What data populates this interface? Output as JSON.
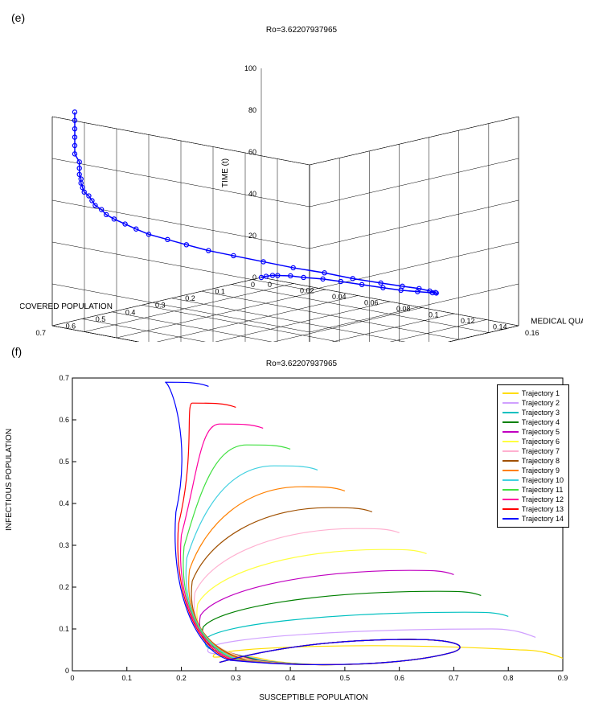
{
  "panel_e": {
    "label": "(e)",
    "title": "Ro=3.62207937965",
    "type": "3d-line-markers",
    "zlabel": "TIME (t)",
    "xlabel": "RECOVERED POPULATION",
    "ylabel": "MEDICAL QUARANTINE POPULATION",
    "z_ticks": [
      0,
      20,
      40,
      60,
      80,
      100
    ],
    "x_ticks": [
      0,
      0.1,
      0.2,
      0.3,
      0.4,
      0.5,
      0.6,
      0.7
    ],
    "y_ticks": [
      0,
      0.02,
      0.04,
      0.06,
      0.08,
      0.1,
      0.12,
      0.14,
      0.16
    ],
    "line_color": "#0000ff",
    "marker_color": "#0000ff",
    "marker_style": "circle",
    "line_width": 1.5,
    "grid_color": "#000000",
    "grid_width": 0.5,
    "background": "#ffffff",
    "data_rxqt": [
      [
        0.0,
        0.0,
        0
      ],
      [
        0.0,
        0.003,
        1
      ],
      [
        0.0,
        0.007,
        2
      ],
      [
        0.01,
        0.012,
        3
      ],
      [
        0.01,
        0.02,
        4
      ],
      [
        0.02,
        0.03,
        5
      ],
      [
        0.02,
        0.042,
        6
      ],
      [
        0.03,
        0.055,
        7
      ],
      [
        0.04,
        0.07,
        8
      ],
      [
        0.05,
        0.085,
        9
      ],
      [
        0.06,
        0.098,
        10
      ],
      [
        0.08,
        0.112,
        12
      ],
      [
        0.1,
        0.125,
        14
      ],
      [
        0.13,
        0.133,
        16
      ],
      [
        0.16,
        0.138,
        18
      ],
      [
        0.19,
        0.14,
        20
      ],
      [
        0.22,
        0.139,
        22
      ],
      [
        0.26,
        0.136,
        24
      ],
      [
        0.3,
        0.13,
        26
      ],
      [
        0.34,
        0.12,
        28
      ],
      [
        0.37,
        0.108,
        30
      ],
      [
        0.41,
        0.096,
        32
      ],
      [
        0.44,
        0.083,
        34
      ],
      [
        0.47,
        0.07,
        36
      ],
      [
        0.5,
        0.06,
        38
      ],
      [
        0.52,
        0.05,
        40
      ],
      [
        0.54,
        0.042,
        42
      ],
      [
        0.56,
        0.034,
        44
      ],
      [
        0.57,
        0.028,
        46
      ],
      [
        0.58,
        0.023,
        48
      ],
      [
        0.59,
        0.018,
        50
      ],
      [
        0.6,
        0.015,
        52
      ],
      [
        0.6,
        0.012,
        54
      ],
      [
        0.61,
        0.01,
        56
      ],
      [
        0.61,
        0.008,
        58
      ],
      [
        0.61,
        0.006,
        60
      ],
      [
        0.62,
        0.005,
        62
      ],
      [
        0.62,
        0.004,
        64
      ],
      [
        0.62,
        0.003,
        66
      ],
      [
        0.62,
        0.003,
        68
      ],
      [
        0.62,
        0.002,
        70
      ],
      [
        0.62,
        0.002,
        73
      ],
      [
        0.62,
        0.002,
        76
      ],
      [
        0.63,
        0.001,
        80
      ],
      [
        0.63,
        0.001,
        84
      ],
      [
        0.63,
        0.001,
        88
      ],
      [
        0.63,
        0.001,
        92
      ],
      [
        0.63,
        0.001,
        96
      ],
      [
        0.63,
        0.001,
        100
      ]
    ]
  },
  "panel_f": {
    "label": "(f)",
    "title": "Ro=3.62207937965",
    "type": "phase-plot",
    "xlabel": "SUSCEPTIBLE POPULATION",
    "ylabel": "INFECTIOUS POPULATION",
    "xlim": [
      0,
      0.9
    ],
    "ylim": [
      0,
      0.7
    ],
    "xtick_step": 0.1,
    "ytick_step": 0.1,
    "background": "#ffffff",
    "grid": false,
    "box_color": "#000000",
    "line_width": 1.2,
    "trajectories": [
      {
        "label": "Trajectory 1",
        "color": "#ffdd00",
        "start": [
          0.9,
          0.03
        ],
        "peak": 0.07,
        "xmin": 0.26
      },
      {
        "label": "Trajectory 2",
        "color": "#d0a0ff",
        "start": [
          0.85,
          0.08
        ],
        "peak": 0.1,
        "xmin": 0.25
      },
      {
        "label": "Trajectory 3",
        "color": "#00c0c0",
        "start": [
          0.8,
          0.13
        ],
        "peak": 0.14,
        "xmin": 0.245
      },
      {
        "label": "Trajectory 4",
        "color": "#008000",
        "start": [
          0.75,
          0.18
        ],
        "peak": 0.19,
        "xmin": 0.24
      },
      {
        "label": "Trajectory 5",
        "color": "#c000c0",
        "start": [
          0.7,
          0.23
        ],
        "peak": 0.24,
        "xmin": 0.235
      },
      {
        "label": "Trajectory 6",
        "color": "#ffff40",
        "start": [
          0.65,
          0.28
        ],
        "peak": 0.29,
        "xmin": 0.23
      },
      {
        "label": "Trajectory 7",
        "color": "#ffb0d0",
        "start": [
          0.6,
          0.33
        ],
        "peak": 0.34,
        "xmin": 0.225
      },
      {
        "label": "Trajectory 8",
        "color": "#a05000",
        "start": [
          0.55,
          0.38
        ],
        "peak": 0.39,
        "xmin": 0.22
      },
      {
        "label": "Trajectory 9",
        "color": "#ff8000",
        "start": [
          0.5,
          0.43
        ],
        "peak": 0.44,
        "xmin": 0.215
      },
      {
        "label": "Trajectory 10",
        "color": "#40d0e0",
        "start": [
          0.45,
          0.48
        ],
        "peak": 0.49,
        "xmin": 0.21
      },
      {
        "label": "Trajectory 11",
        "color": "#40e040",
        "start": [
          0.4,
          0.53
        ],
        "peak": 0.54,
        "xmin": 0.205
      },
      {
        "label": "Trajectory 12",
        "color": "#ff00a0",
        "start": [
          0.35,
          0.58
        ],
        "peak": 0.59,
        "xmin": 0.2
      },
      {
        "label": "Trajectory 13",
        "color": "#ff0000",
        "start": [
          0.3,
          0.63
        ],
        "peak": 0.64,
        "xmin": 0.195
      },
      {
        "label": "Trajectory 14",
        "color": "#0000ff",
        "start": [
          0.25,
          0.68
        ],
        "peak": 0.69,
        "xmin": 0.19
      }
    ],
    "convergence_point": [
      0.27,
      0.02
    ]
  }
}
